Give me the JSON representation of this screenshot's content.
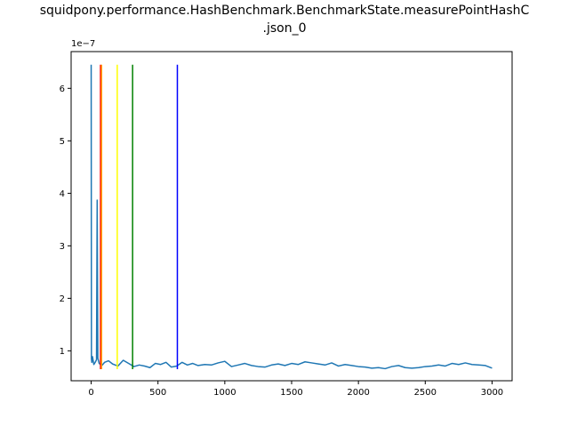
{
  "chart_data": {
    "type": "line",
    "title_lines": [
      "squidpony.performance.HashBenchmark.BenchmarkState.measurePointHashC",
      ".json_0"
    ],
    "xlabel": "",
    "ylabel": "",
    "y_offset_text": "1e−7",
    "xlim": [
      -150,
      3150
    ],
    "ylim": [
      4.3e-08,
      6.7e-07
    ],
    "x_ticks": [
      0,
      500,
      1000,
      1500,
      2000,
      2500,
      3000
    ],
    "x_tick_labels": [
      "0",
      "500",
      "1000",
      "1500",
      "2000",
      "2500",
      "3000"
    ],
    "y_ticks": [
      1e-07,
      2e-07,
      3e-07,
      4e-07,
      5e-07,
      6e-07
    ],
    "y_tick_labels": [
      "1",
      "2",
      "3",
      "4",
      "5",
      "6"
    ],
    "grid": false,
    "legend": "none",
    "series": [
      {
        "color": "#1f77b4",
        "x": [
          0,
          2,
          5,
          10,
          20,
          30,
          40,
          45,
          50,
          60,
          80,
          100,
          130,
          160,
          200,
          240,
          280,
          320,
          360,
          400,
          440,
          480,
          520,
          560,
          600,
          640,
          680,
          720,
          760,
          800,
          850,
          900,
          950,
          1000,
          1050,
          1100,
          1150,
          1200,
          1250,
          1300,
          1350,
          1400,
          1450,
          1500,
          1550,
          1600,
          1650,
          1700,
          1750,
          1800,
          1850,
          1900,
          1950,
          2000,
          2050,
          2100,
          2150,
          2200,
          2250,
          2300,
          2350,
          2400,
          2450,
          2500,
          2550,
          2600,
          2650,
          2700,
          2750,
          2800,
          2850,
          2900,
          2950,
          3000
        ],
        "values": [
          6.45e-07,
          8.5e-08,
          7.8e-08,
          8.9e-08,
          7.4e-08,
          7.8e-08,
          8.3e-08,
          3.87e-07,
          8.6e-08,
          7.6e-08,
          7.2e-08,
          7.8e-08,
          8.1e-08,
          7.5e-08,
          7.1e-08,
          8.2e-08,
          7.6e-08,
          7e-08,
          7.3e-08,
          7.1e-08,
          6.8e-08,
          7.6e-08,
          7.4e-08,
          7.8e-08,
          6.9e-08,
          7.1e-08,
          7.8e-08,
          7.3e-08,
          7.6e-08,
          7.2e-08,
          7.4e-08,
          7.3e-08,
          7.7e-08,
          8e-08,
          7e-08,
          7.3e-08,
          7.6e-08,
          7.2e-08,
          7e-08,
          6.9e-08,
          7.3e-08,
          7.5e-08,
          7.2e-08,
          7.6e-08,
          7.4e-08,
          7.9e-08,
          7.7e-08,
          7.5e-08,
          7.3e-08,
          7.7e-08,
          7.1e-08,
          7.4e-08,
          7.2e-08,
          7e-08,
          6.9e-08,
          6.7e-08,
          6.8e-08,
          6.6e-08,
          7e-08,
          7.2e-08,
          6.8e-08,
          6.7e-08,
          6.8e-08,
          7e-08,
          7.1e-08,
          7.3e-08,
          7.1e-08,
          7.6e-08,
          7.4e-08,
          7.7e-08,
          7.4e-08,
          7.3e-08,
          7.2e-08,
          6.7e-08
        ]
      }
    ],
    "vlines": [
      {
        "x": 70,
        "ymin": 6.5e-08,
        "ymax": 6.45e-07,
        "color": "#ff0000"
      },
      {
        "x": 78,
        "ymin": 6.5e-08,
        "ymax": 6.45e-07,
        "color": "#ffa500"
      },
      {
        "x": 195,
        "ymin": 6.5e-08,
        "ymax": 6.45e-07,
        "color": "#ffff00"
      },
      {
        "x": 310,
        "ymin": 6.5e-08,
        "ymax": 6.45e-07,
        "color": "#008000"
      },
      {
        "x": 645,
        "ymin": 6.5e-08,
        "ymax": 6.45e-07,
        "color": "#0000ff"
      }
    ]
  }
}
